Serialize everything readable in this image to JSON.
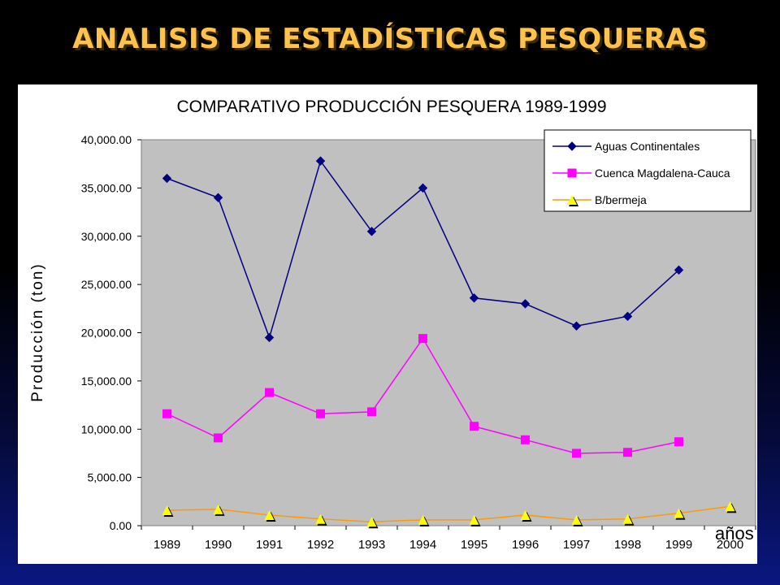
{
  "slide": {
    "title": "ANALISIS DE ESTADÍSTICAS PESQUERAS"
  },
  "colors": {
    "aguas": "#000080",
    "cuenca": "#ff00ff",
    "bbermeja": "#ff9900",
    "bbermeja_marker": "#ffff00",
    "plot_bg": "#c0c0c0",
    "title_text": "#ffc34d"
  },
  "chart_data": {
    "type": "line",
    "title": "COMPARATIVO PRODUCCIÓN PESQUERA 1989-1999",
    "xlabel": "años",
    "ylabel": "Producción (ton)",
    "categories": [
      "1989",
      "1990",
      "1991",
      "1992",
      "1993",
      "1994",
      "1995",
      "1996",
      "1997",
      "1998",
      "1999",
      "2000"
    ],
    "ylim": [
      0,
      40000
    ],
    "yticks": [
      "0.00",
      "5,000.00",
      "10,000.00",
      "15,000.00",
      "20,000.00",
      "25,000.00",
      "30,000.00",
      "35,000.00",
      "40,000.00"
    ],
    "ytick_values": [
      0,
      5000,
      10000,
      15000,
      20000,
      25000,
      30000,
      35000,
      40000
    ],
    "grid": false,
    "legend_position": "top-right",
    "series": [
      {
        "name": "Aguas Continentales",
        "marker": "diamond",
        "values": [
          36000,
          34000,
          19500,
          37800,
          30500,
          35000,
          23600,
          23000,
          20700,
          21700,
          26500,
          null
        ]
      },
      {
        "name": "Cuenca Magdalena-Cauca",
        "marker": "square",
        "values": [
          11600,
          9100,
          13800,
          11600,
          11800,
          19400,
          10300,
          8900,
          7500,
          7600,
          8700,
          null
        ]
      },
      {
        "name": "B/bermeja",
        "marker": "triangle",
        "values": [
          1600,
          1700,
          1100,
          700,
          400,
          600,
          600,
          1100,
          600,
          700,
          1300,
          2000
        ]
      }
    ]
  }
}
